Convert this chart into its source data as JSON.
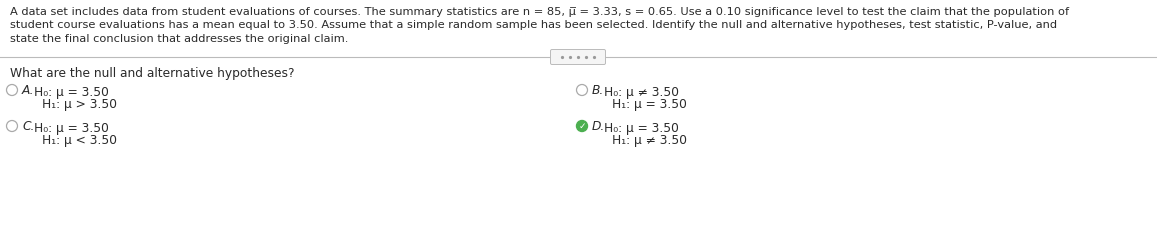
{
  "bg_color": "#ffffff",
  "text_color": "#2a2a2a",
  "para_line1": "A data set includes data from student evaluations of courses. The summary statistics are n = 85, μ̅ = 3.33, s = 0.65. Use a 0.10 significance level to test the claim that the population of",
  "para_line2": "student course evaluations has a mean equal to 3.50. Assume that a simple random sample has been selected. Identify the null and alternative hypotheses, test statistic, P-value, and",
  "para_line3": "state the final conclusion that addresses the original claim.",
  "question": "What are the null and alternative hypotheses?",
  "options": [
    {
      "letter": "A.",
      "h0": "H₀: μ = 3.50",
      "h1": "H₁: μ > 3.50",
      "selected": false,
      "col": 0,
      "row": 0
    },
    {
      "letter": "B.",
      "h0": "H₀: μ ≠ 3.50",
      "h1": "H₁: μ = 3.50",
      "selected": false,
      "col": 1,
      "row": 0
    },
    {
      "letter": "C.",
      "h0": "H₀: μ = 3.50",
      "h1": "H₁: μ < 3.50",
      "selected": false,
      "col": 0,
      "row": 1
    },
    {
      "letter": "D.",
      "h0": "H₀: μ = 3.50",
      "h1": "H₁: μ ≠ 3.50",
      "selected": true,
      "col": 1,
      "row": 1
    }
  ],
  "fs_para": 8.2,
  "fs_question": 8.8,
  "fs_option": 8.8,
  "fs_hyp": 8.8
}
